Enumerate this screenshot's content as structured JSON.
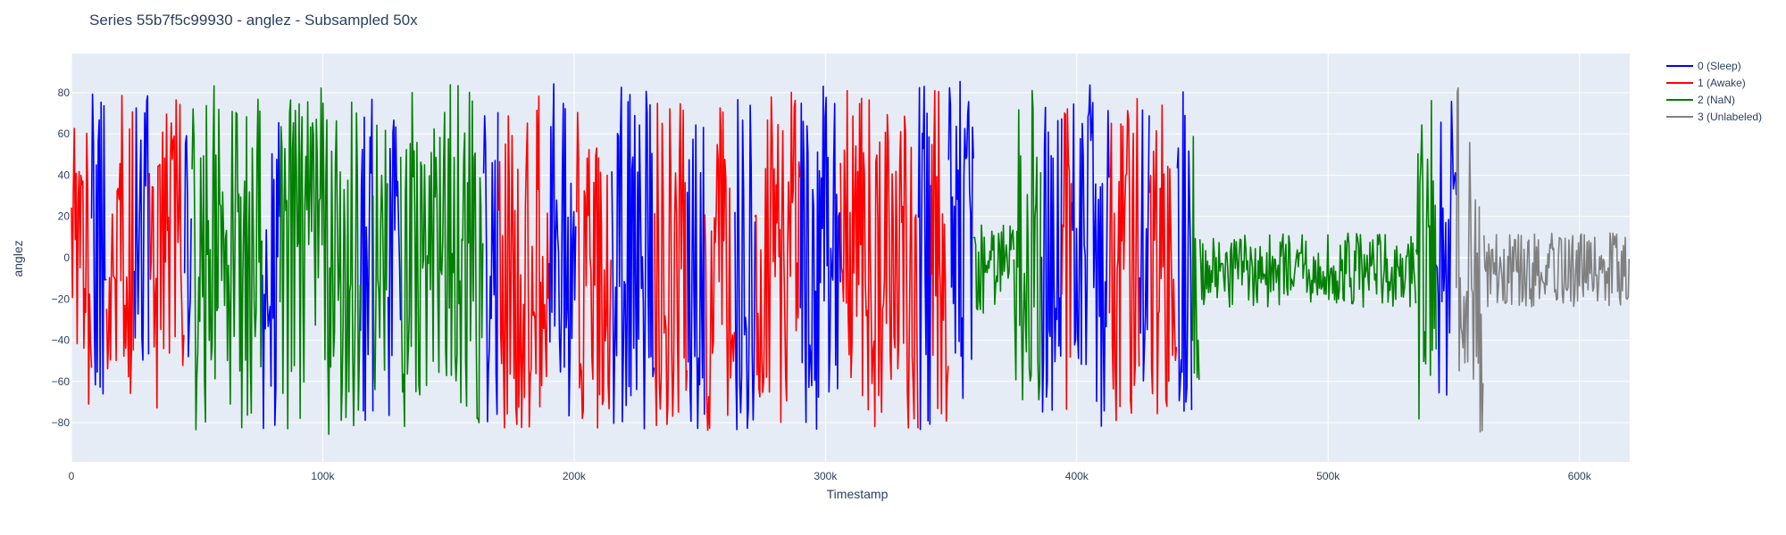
{
  "chart_data": {
    "type": "line",
    "title": "Series 55b7f5c99930 - anglez - Subsampled 50x",
    "xlabel": "Timestamp",
    "ylabel": "anglez",
    "xlim": [
      0,
      620000
    ],
    "ylim": [
      -99,
      99
    ],
    "x_ticks": [
      0,
      100000,
      200000,
      300000,
      400000,
      500000,
      600000
    ],
    "x_tick_labels": [
      "0",
      "100k",
      "200k",
      "300k",
      "400k",
      "500k",
      "600k"
    ],
    "y_ticks": [
      -80,
      -60,
      -40,
      -20,
      0,
      20,
      40,
      60,
      80
    ],
    "y_tick_labels": [
      "−80",
      "−60",
      "−40",
      "−20",
      "0",
      "20",
      "40",
      "60",
      "80"
    ],
    "grid": true,
    "legend_position": "top-right outside",
    "background_color": "#e5ecf6",
    "series": [
      {
        "name": "0 (Sleep)",
        "color": "#0000ff",
        "segments": [
          {
            "x_start": 8000,
            "x_end": 14000,
            "amplitude": 80
          },
          {
            "x_start": 25000,
            "x_end": 31000,
            "amplitude": 82
          },
          {
            "x_start": 45000,
            "x_end": 48000,
            "amplitude": 80
          },
          {
            "x_start": 76000,
            "x_end": 83000,
            "amplitude": 85
          },
          {
            "x_start": 115000,
            "x_end": 120000,
            "amplitude": 82
          },
          {
            "x_start": 126000,
            "x_end": 131000,
            "amplitude": 86
          },
          {
            "x_start": 164000,
            "x_end": 170000,
            "amplitude": 82
          },
          {
            "x_start": 190000,
            "x_end": 201000,
            "amplitude": 85
          },
          {
            "x_start": 215000,
            "x_end": 232000,
            "amplitude": 86
          },
          {
            "x_start": 245000,
            "x_end": 252000,
            "amplitude": 86
          },
          {
            "x_start": 264000,
            "x_end": 272000,
            "amplitude": 86
          },
          {
            "x_start": 290000,
            "x_end": 306000,
            "amplitude": 86
          },
          {
            "x_start": 337000,
            "x_end": 342000,
            "amplitude": 85
          },
          {
            "x_start": 349000,
            "x_end": 359000,
            "amplitude": 88
          },
          {
            "x_start": 386000,
            "x_end": 394000,
            "amplitude": 86
          },
          {
            "x_start": 398000,
            "x_end": 413000,
            "amplitude": 85
          },
          {
            "x_start": 425000,
            "x_end": 429000,
            "amplitude": 82
          },
          {
            "x_start": 440000,
            "x_end": 446000,
            "amplitude": 86
          },
          {
            "x_start": 543000,
            "x_end": 551000,
            "amplitude": 78
          }
        ]
      },
      {
        "name": "1 (Awake)",
        "color": "#ff0000",
        "segments": [
          {
            "x_start": 0,
            "x_end": 8000,
            "amplitude": 74
          },
          {
            "x_start": 14000,
            "x_end": 25000,
            "amplitude": 80
          },
          {
            "x_start": 31000,
            "x_end": 45000,
            "amplitude": 78
          },
          {
            "x_start": 170000,
            "x_end": 190000,
            "amplitude": 84
          },
          {
            "x_start": 201000,
            "x_end": 215000,
            "amplitude": 84
          },
          {
            "x_start": 232000,
            "x_end": 245000,
            "amplitude": 84
          },
          {
            "x_start": 252000,
            "x_end": 264000,
            "amplitude": 84
          },
          {
            "x_start": 272000,
            "x_end": 290000,
            "amplitude": 84
          },
          {
            "x_start": 306000,
            "x_end": 337000,
            "amplitude": 84
          },
          {
            "x_start": 342000,
            "x_end": 349000,
            "amplitude": 82
          },
          {
            "x_start": 394000,
            "x_end": 398000,
            "amplitude": 80
          },
          {
            "x_start": 413000,
            "x_end": 425000,
            "amplitude": 80
          },
          {
            "x_start": 429000,
            "x_end": 440000,
            "amplitude": 80
          }
        ]
      },
      {
        "name": "2 (NaN)",
        "color": "#008000",
        "segments": [
          {
            "x_start": 48000,
            "x_end": 76000,
            "amplitude": 86
          },
          {
            "x_start": 83000,
            "x_end": 115000,
            "amplitude": 86
          },
          {
            "x_start": 120000,
            "x_end": 126000,
            "amplitude": 80
          },
          {
            "x_start": 131000,
            "x_end": 164000,
            "amplitude": 84
          },
          {
            "x_start": 359000,
            "x_end": 375000,
            "amplitude": 22
          },
          {
            "x_start": 375000,
            "x_end": 386000,
            "amplitude": 82
          },
          {
            "x_start": 446000,
            "x_end": 449000,
            "amplitude": 88
          },
          {
            "x_start": 449000,
            "x_end": 535000,
            "amplitude": 18
          },
          {
            "x_start": 535000,
            "x_end": 543000,
            "amplitude": 80
          }
        ]
      },
      {
        "name": "3 (Unlabeled)",
        "color": "#808080",
        "segments": [
          {
            "x_start": 551000,
            "x_end": 562000,
            "amplitude": 86
          },
          {
            "x_start": 562000,
            "x_end": 620000,
            "amplitude": 18
          }
        ]
      }
    ]
  }
}
